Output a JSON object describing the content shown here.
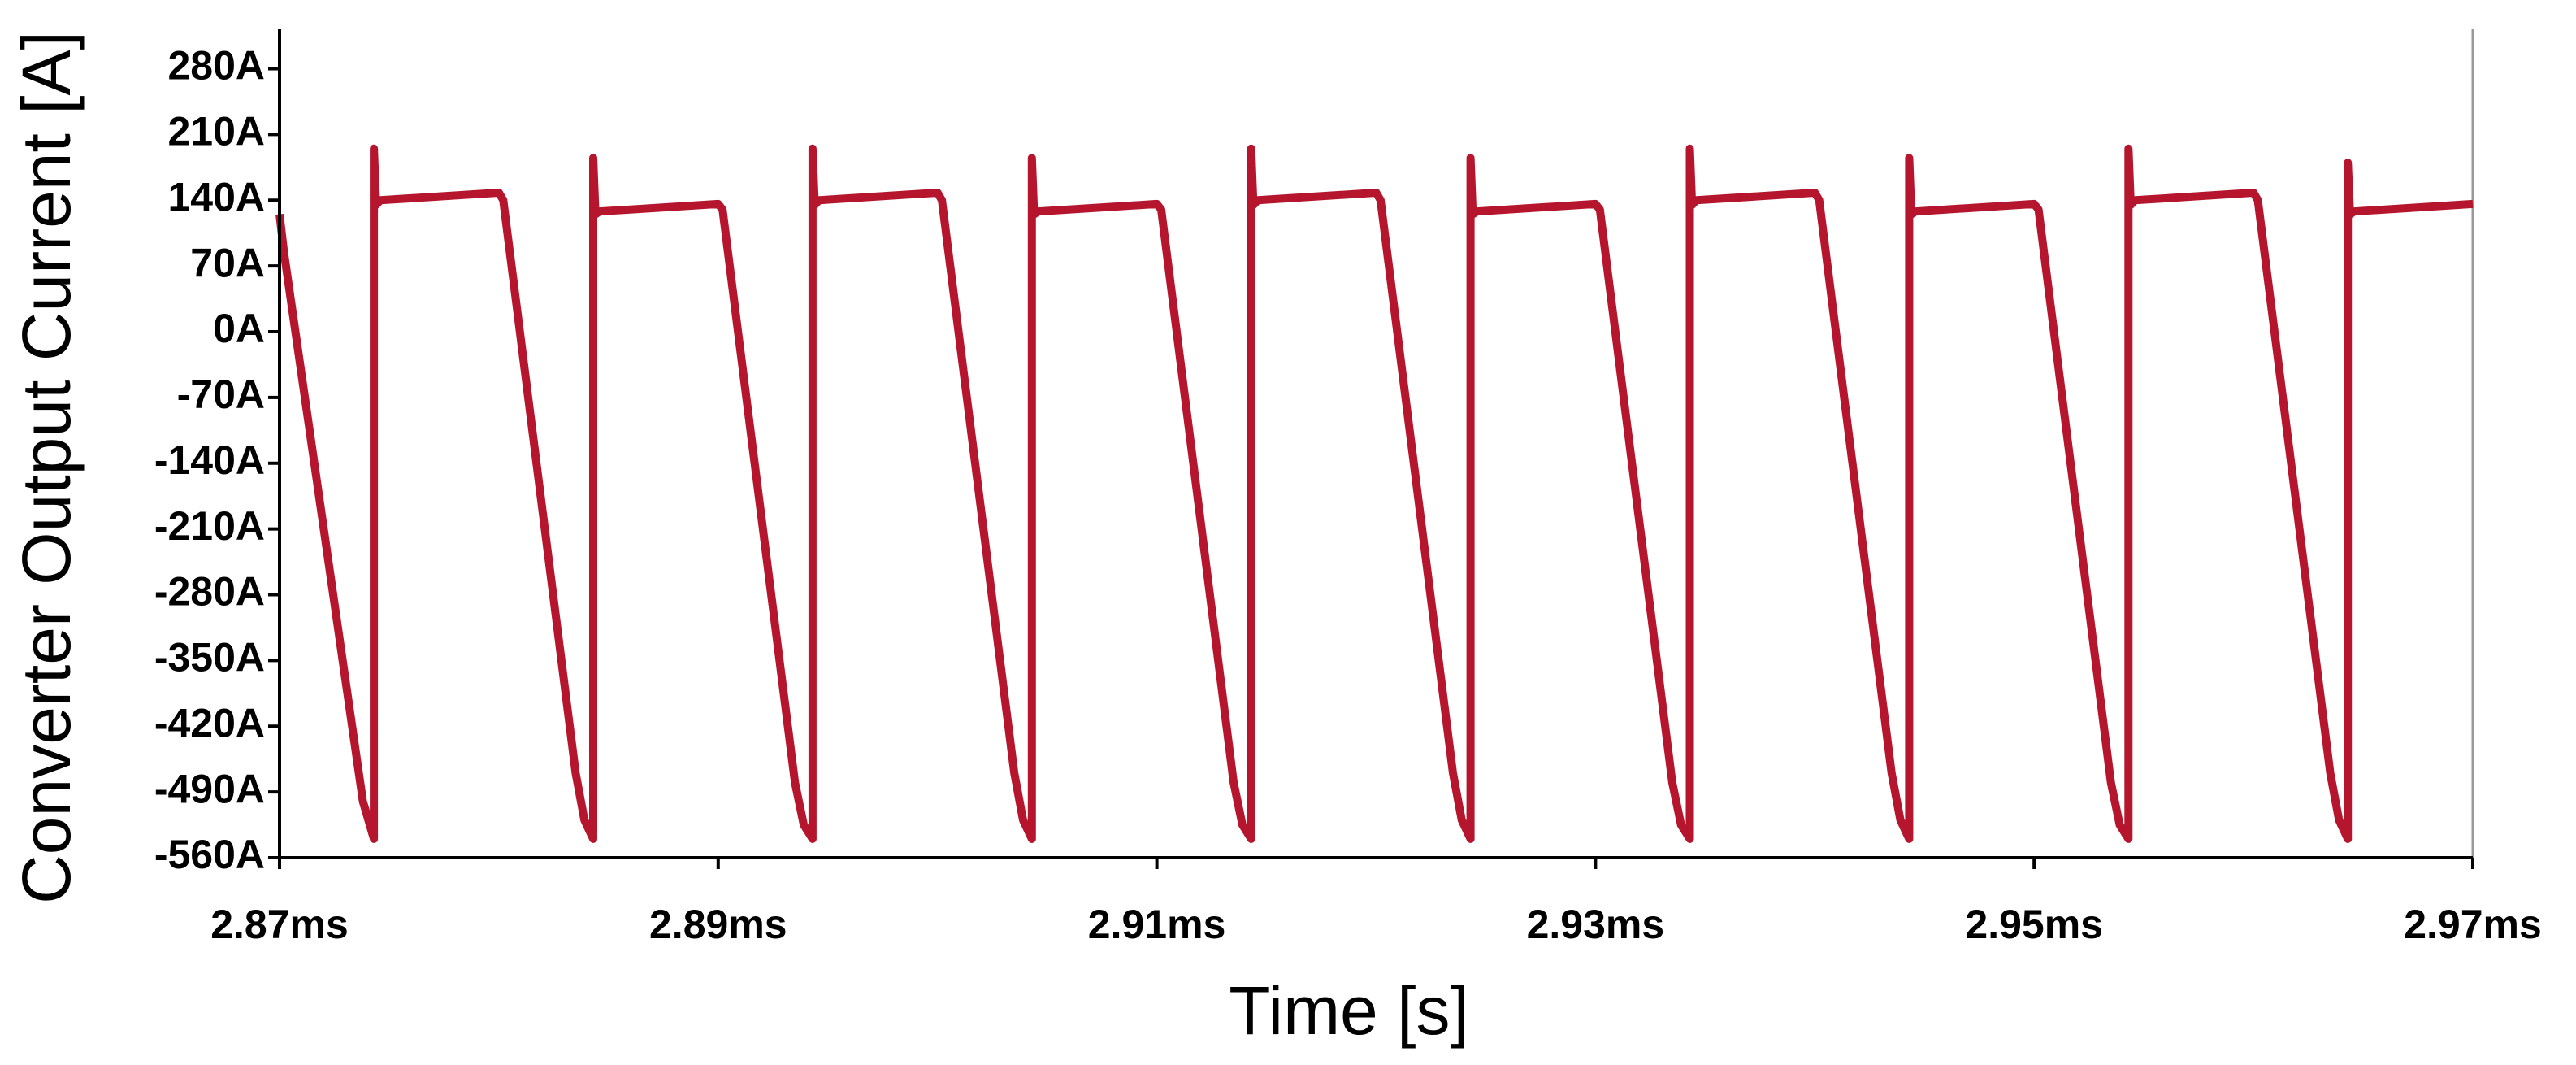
{
  "chart_data": {
    "type": "line",
    "xlabel": "Time [s]",
    "ylabel": "Converter Output Current [A]",
    "color": "#b5162e",
    "xlim": [
      2.87,
      2.97
    ],
    "xticks": [
      {
        "value": 2.87,
        "label": "2.87ms"
      },
      {
        "value": 2.89,
        "label": "2.89ms"
      },
      {
        "value": 2.91,
        "label": "2.91ms"
      },
      {
        "value": 2.93,
        "label": "2.93ms"
      },
      {
        "value": 2.95,
        "label": "2.95ms"
      },
      {
        "value": 2.97,
        "label": "2.97ms"
      }
    ],
    "ylim": [
      -560,
      322
    ],
    "yticks": [
      {
        "value": 280,
        "label": "280A"
      },
      {
        "value": 210,
        "label": "210A"
      },
      {
        "value": 140,
        "label": "140A"
      },
      {
        "value": 70,
        "label": "70A"
      },
      {
        "value": 0,
        "label": "0A"
      },
      {
        "value": -70,
        "label": "-70A"
      },
      {
        "value": -140,
        "label": "-140A"
      },
      {
        "value": -210,
        "label": "-210A"
      },
      {
        "value": -280,
        "label": "-280A"
      },
      {
        "value": -350,
        "label": "-350A"
      },
      {
        "value": -420,
        "label": "-420A"
      },
      {
        "value": -490,
        "label": "-490A"
      },
      {
        "value": -560,
        "label": "-560A"
      }
    ],
    "x": [
      2.87,
      2.8702,
      2.8738,
      2.8743,
      2.8743,
      2.8744,
      2.8746,
      2.88,
      2.8802,
      2.8835,
      2.8839,
      2.8843,
      2.8843,
      2.8844,
      2.8846,
      2.89,
      2.8902,
      2.8935,
      2.8939,
      2.8943,
      2.8943,
      2.8944,
      2.8946,
      2.9,
      2.9002,
      2.9035,
      2.9039,
      2.9043,
      2.9043,
      2.9044,
      2.9046,
      2.91,
      2.9102,
      2.9135,
      2.9139,
      2.9143,
      2.9143,
      2.9144,
      2.9146,
      2.92,
      2.9202,
      2.9235,
      2.9239,
      2.9243,
      2.9243,
      2.9244,
      2.9246,
      2.93,
      2.9302,
      2.9335,
      2.9339,
      2.9343,
      2.9343,
      2.9344,
      2.9346,
      2.94,
      2.9402,
      2.9435,
      2.9439,
      2.9443,
      2.9443,
      2.9444,
      2.9446,
      2.95,
      2.9502,
      2.9535,
      2.9539,
      2.9543,
      2.9543,
      2.9544,
      2.9546,
      2.96,
      2.9602,
      2.9635,
      2.9639,
      2.9643,
      2.9643,
      2.9644,
      2.9646,
      2.97
    ],
    "values": [
      125,
      85,
      -500,
      -540,
      195,
      135,
      140,
      148,
      140,
      -470,
      -520,
      -540,
      185,
      125,
      128,
      136,
      130,
      -480,
      -525,
      -540,
      195,
      135,
      140,
      148,
      140,
      -470,
      -520,
      -540,
      185,
      125,
      128,
      136,
      130,
      -480,
      -525,
      -540,
      195,
      135,
      140,
      148,
      140,
      -470,
      -520,
      -540,
      185,
      125,
      128,
      136,
      130,
      -480,
      -525,
      -540,
      195,
      135,
      140,
      148,
      140,
      -470,
      -520,
      -540,
      185,
      125,
      128,
      136,
      130,
      -480,
      -525,
      -540,
      195,
      135,
      140,
      148,
      140,
      -470,
      -520,
      -540,
      180,
      125,
      128,
      136
    ]
  }
}
